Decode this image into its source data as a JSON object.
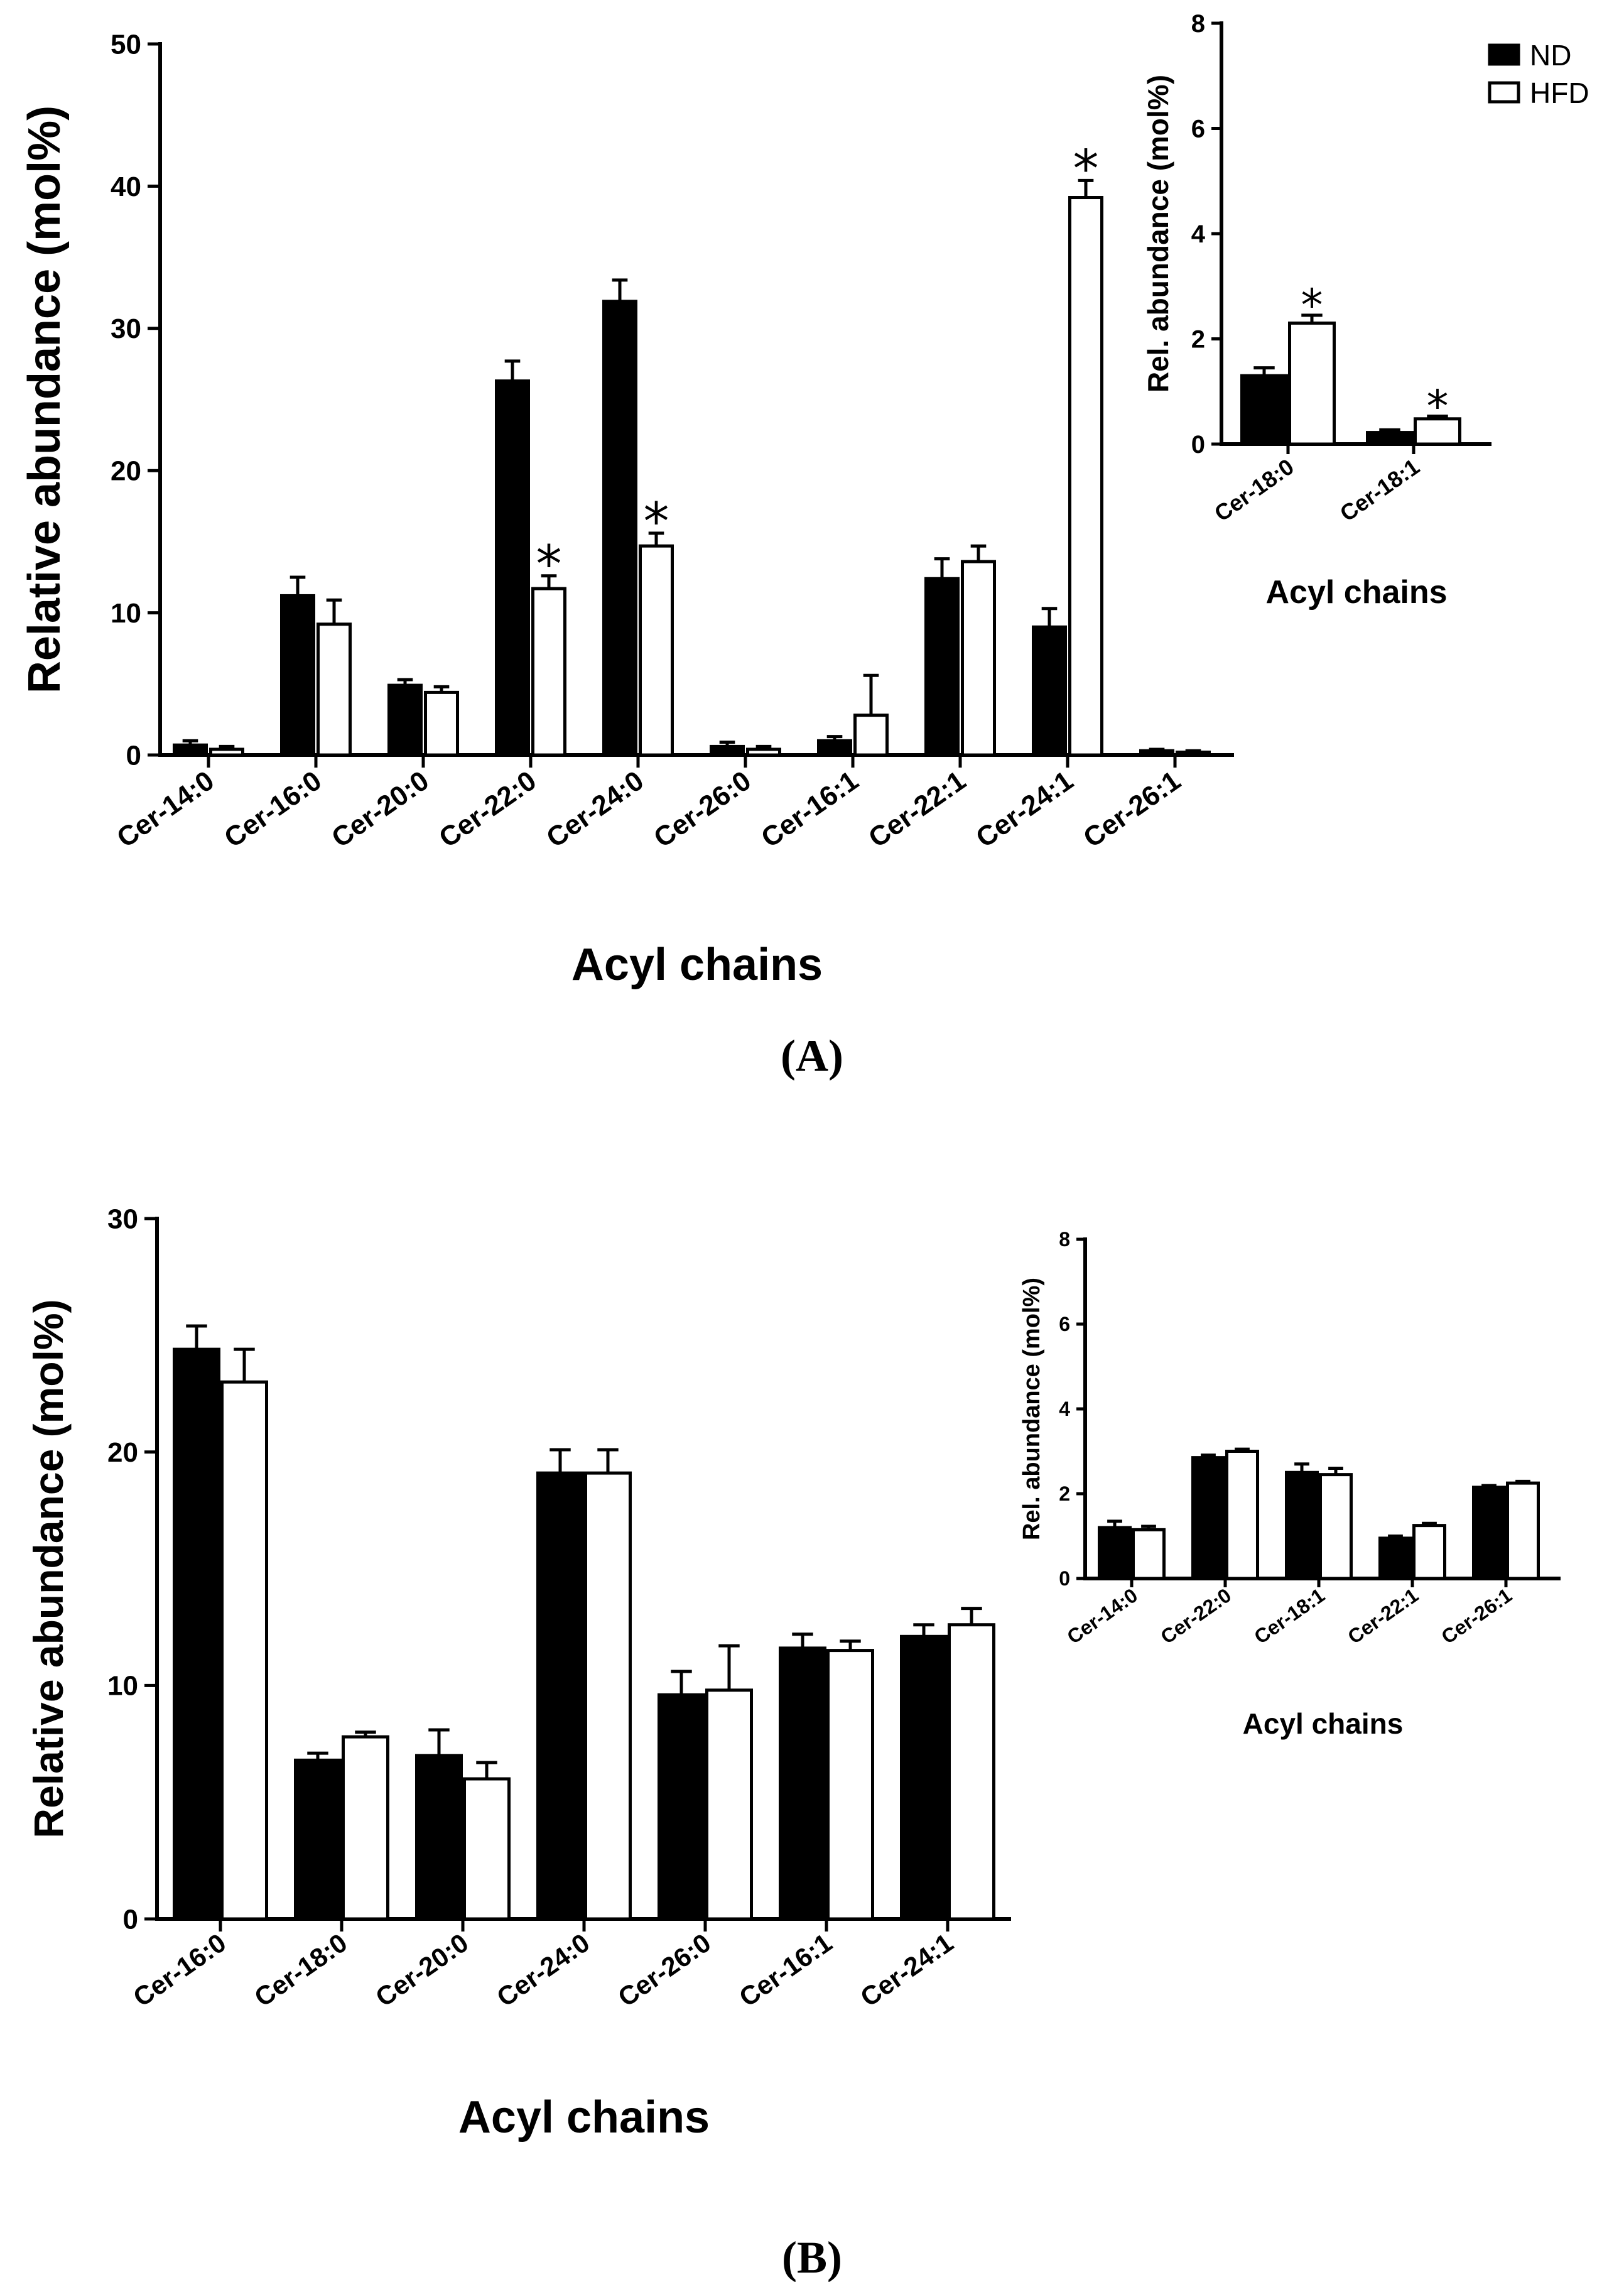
{
  "colors": {
    "nd": "#000000",
    "hfd": "#ffffff",
    "stroke": "#000000"
  },
  "legend": [
    {
      "label": "ND",
      "color": "#000000"
    },
    {
      "label": "HFD",
      "color": "#ffffff"
    }
  ],
  "panel_labels": {
    "a": "(A)",
    "b": "(B)"
  },
  "chart_data": [
    {
      "id": "A-main",
      "type": "bar",
      "title": "",
      "xlabel": "Acyl chains",
      "ylabel": "Relative abundance (mol%)",
      "ylim": [
        0,
        50
      ],
      "yticks": [
        0,
        10,
        20,
        30,
        40,
        50
      ],
      "categories": [
        "Cer-14:0",
        "Cer-16:0",
        "Cer-20:0",
        "Cer-22:0",
        "Cer-24:0",
        "Cer-26:0",
        "Cer-16:1",
        "Cer-22:1",
        "Cer-24:1",
        "Cer-26:1"
      ],
      "series": [
        {
          "name": "ND",
          "values": [
            0.7,
            11.2,
            4.9,
            26.3,
            31.9,
            0.6,
            1.0,
            12.4,
            9.0,
            0.3
          ],
          "errors": [
            0.3,
            1.3,
            0.4,
            1.4,
            1.5,
            0.3,
            0.3,
            1.4,
            1.3,
            0.1
          ]
        },
        {
          "name": "HFD",
          "values": [
            0.4,
            9.2,
            4.4,
            11.7,
            14.7,
            0.4,
            2.8,
            13.6,
            39.2,
            0.2
          ],
          "errors": [
            0.2,
            1.7,
            0.4,
            0.9,
            0.9,
            0.2,
            2.8,
            1.1,
            1.2,
            0.1
          ]
        }
      ],
      "significance": [
        {
          "category": "Cer-22:0",
          "series": "HFD",
          "label": "*"
        },
        {
          "category": "Cer-24:0",
          "series": "HFD",
          "label": "*"
        },
        {
          "category": "Cer-24:1",
          "series": "HFD",
          "label": "*"
        }
      ]
    },
    {
      "id": "A-inset",
      "type": "bar",
      "title": "",
      "xlabel": "Acyl chains",
      "ylabel": "Rel. abundance (mol%)",
      "ylim": [
        0,
        8
      ],
      "yticks": [
        0,
        2,
        4,
        6,
        8
      ],
      "categories": [
        "Cer-18:0",
        "Cer-18:1"
      ],
      "series": [
        {
          "name": "ND",
          "values": [
            1.3,
            0.22
          ],
          "errors": [
            0.15,
            0.05
          ]
        },
        {
          "name": "HFD",
          "values": [
            2.3,
            0.48
          ],
          "errors": [
            0.15,
            0.05
          ]
        }
      ],
      "significance": [
        {
          "category": "Cer-18:0",
          "series": "HFD",
          "label": "*"
        },
        {
          "category": "Cer-18:1",
          "series": "HFD",
          "label": "*"
        }
      ]
    },
    {
      "id": "B-main",
      "type": "bar",
      "title": "",
      "xlabel": "Acyl chains",
      "ylabel": "Relative abundance (mol%)",
      "ylim": [
        0,
        30
      ],
      "yticks": [
        0,
        10,
        20,
        30
      ],
      "categories": [
        "Cer-16:0",
        "Cer-18:0",
        "Cer-20:0",
        "Cer-24:0",
        "Cer-26:0",
        "Cer-16:1",
        "Cer-24:1"
      ],
      "series": [
        {
          "name": "ND",
          "values": [
            24.4,
            6.8,
            7.0,
            19.1,
            9.6,
            11.6,
            12.1
          ],
          "errors": [
            1.0,
            0.3,
            1.1,
            1.0,
            1.0,
            0.6,
            0.5
          ]
        },
        {
          "name": "HFD",
          "values": [
            23.0,
            7.8,
            6.0,
            19.1,
            9.8,
            11.5,
            12.6
          ],
          "errors": [
            1.4,
            0.2,
            0.7,
            1.0,
            1.9,
            0.4,
            0.7
          ]
        }
      ],
      "significance": []
    },
    {
      "id": "B-inset",
      "type": "bar",
      "title": "",
      "xlabel": "Acyl chains",
      "ylabel": "Rel. abundance (mol%)",
      "ylim": [
        0,
        8
      ],
      "yticks": [
        0,
        2,
        4,
        6,
        8
      ],
      "categories": [
        "Cer-14:0",
        "Cer-22:0",
        "Cer-18:1",
        "Cer-22:1",
        "Cer-26:1"
      ],
      "series": [
        {
          "name": "ND",
          "values": [
            1.2,
            2.85,
            2.5,
            0.95,
            2.15
          ],
          "errors": [
            0.15,
            0.06,
            0.2,
            0.05,
            0.04
          ]
        },
        {
          "name": "HFD",
          "values": [
            1.15,
            3.0,
            2.45,
            1.25,
            2.25
          ],
          "errors": [
            0.08,
            0.05,
            0.15,
            0.05,
            0.04
          ]
        }
      ],
      "significance": []
    }
  ]
}
